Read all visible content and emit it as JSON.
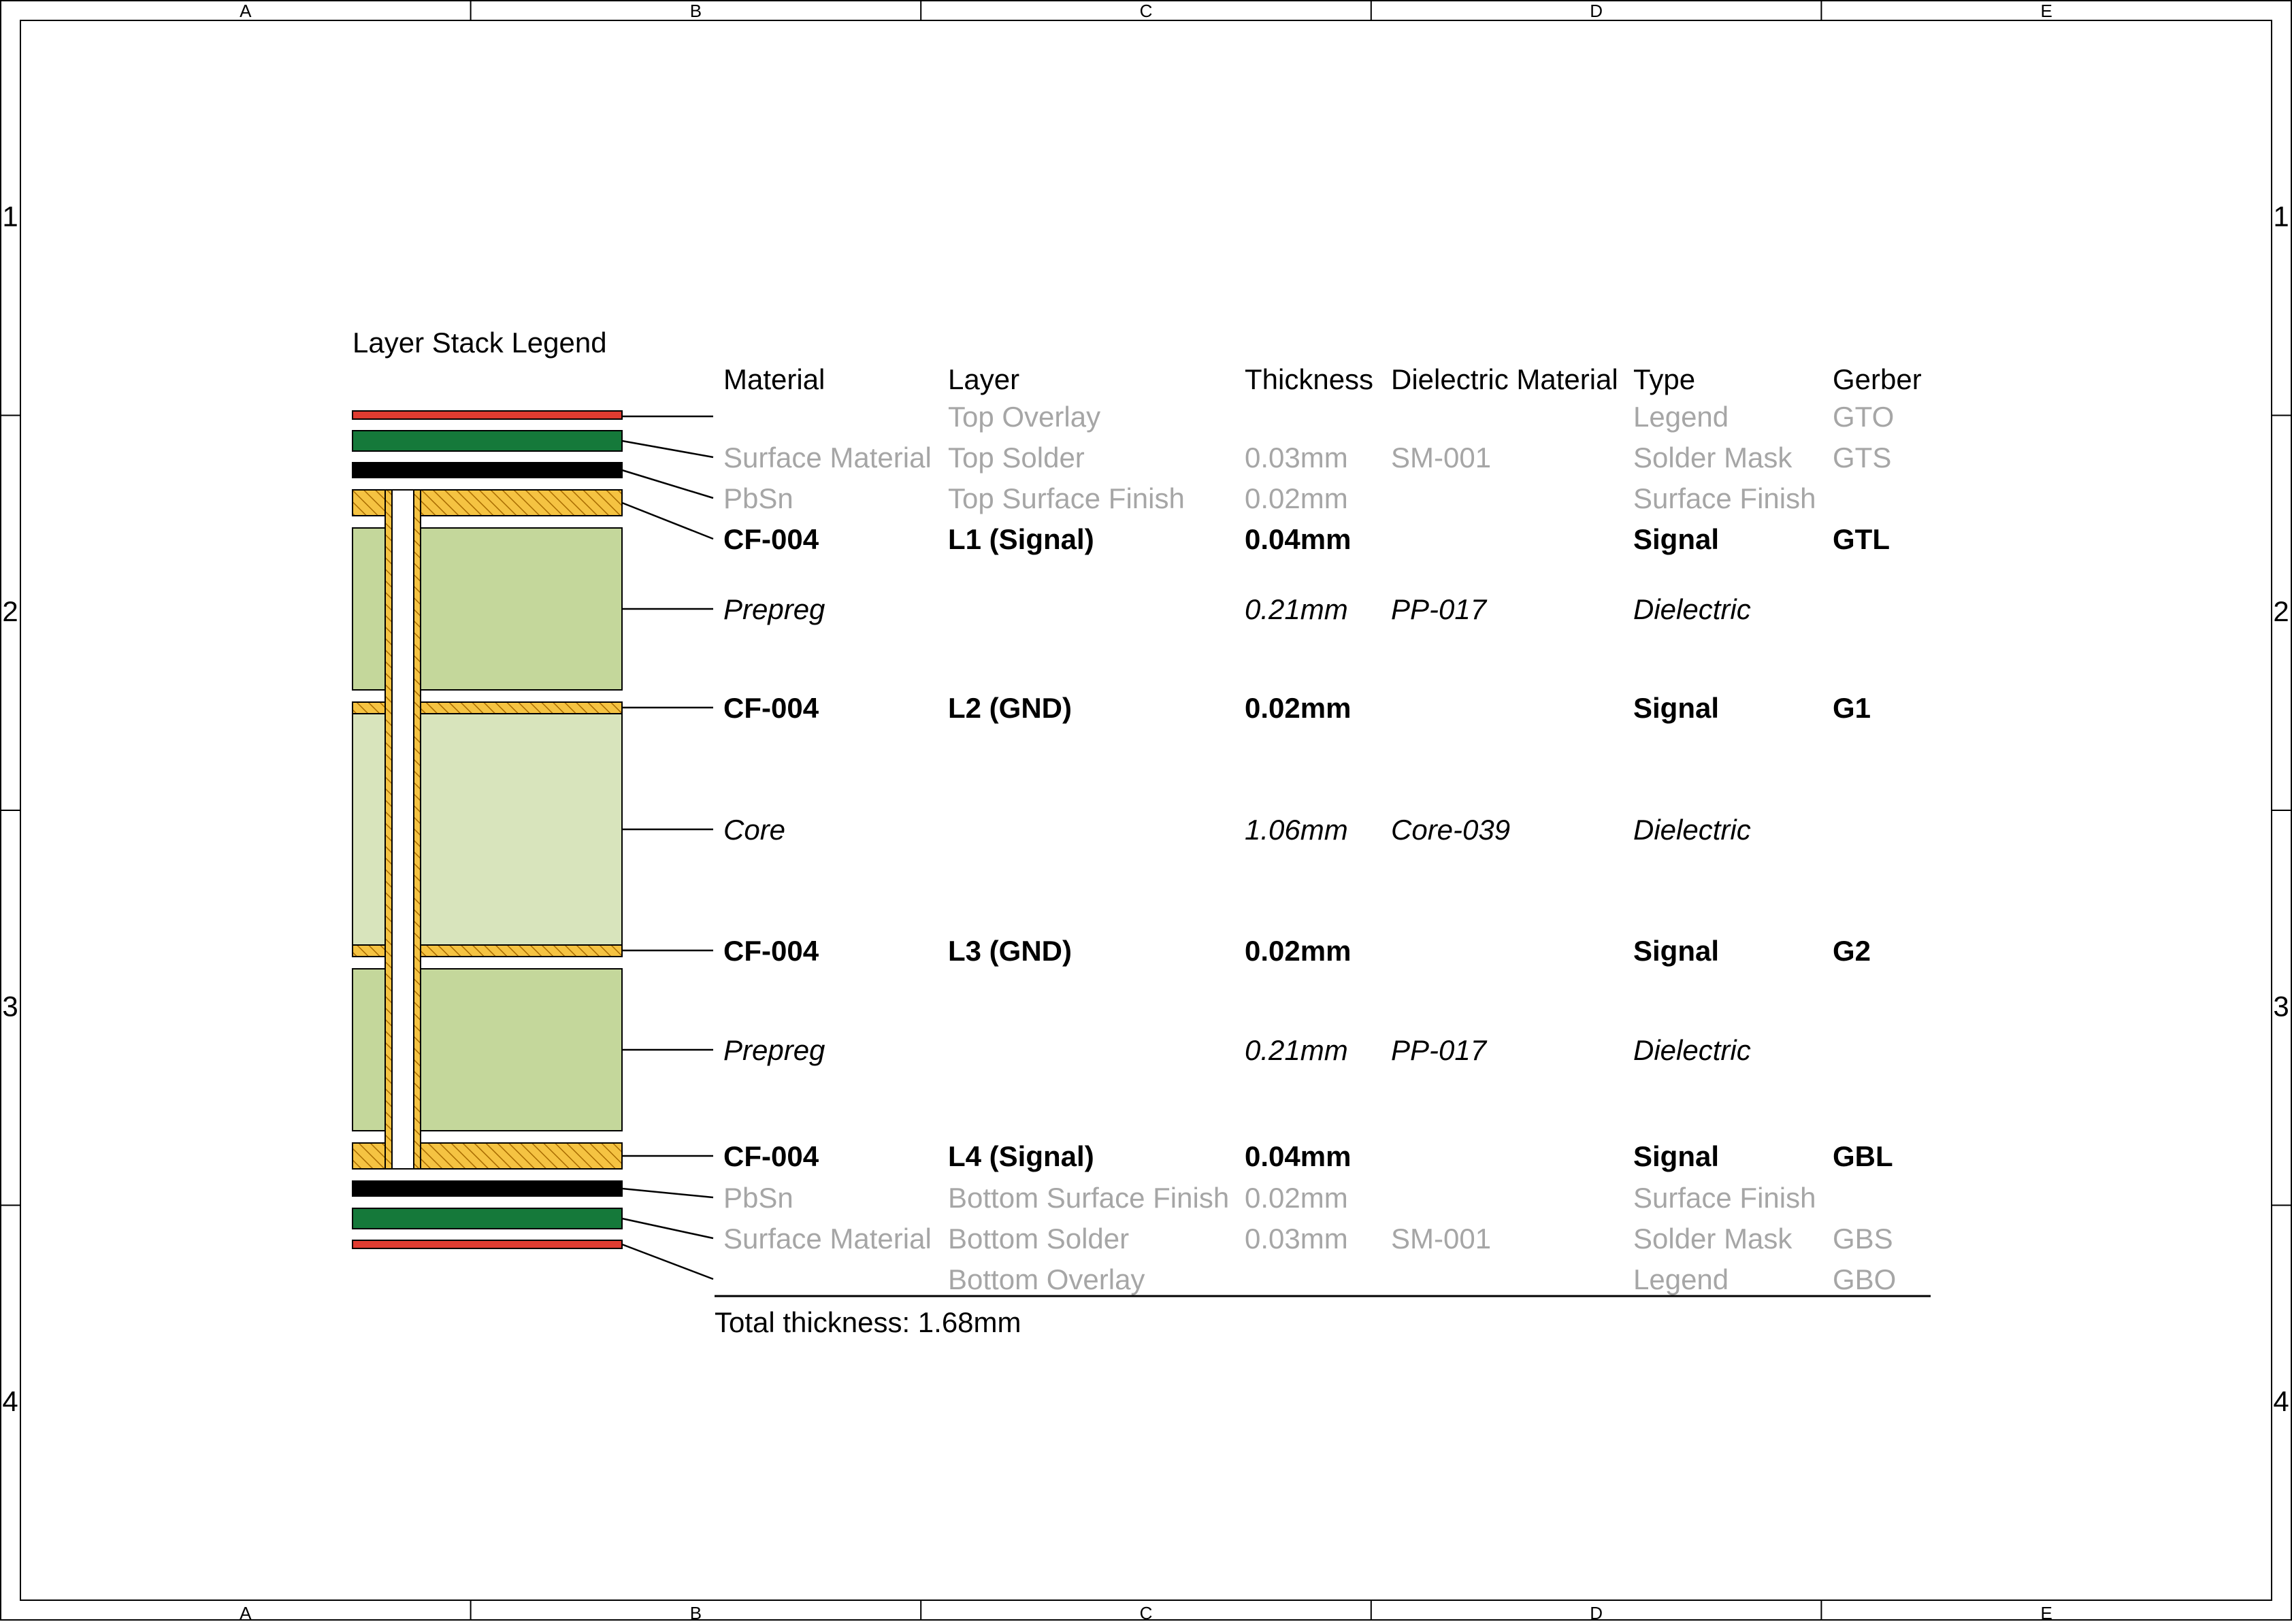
{
  "frame": {
    "columns": [
      "A",
      "B",
      "C",
      "D",
      "E"
    ],
    "rows": [
      "1",
      "2",
      "3",
      "4"
    ]
  },
  "legend_title": "Layer Stack Legend",
  "headers": {
    "material": "Material",
    "layer": "Layer",
    "thickness": "Thickness",
    "dielectric": "Dielectric Material",
    "type": "Type",
    "gerber": "Gerber"
  },
  "layers": [
    {
      "kind": "overlay",
      "material": "",
      "layer": "Top Overlay",
      "thickness": "",
      "dielectric": "",
      "type": "Legend",
      "gerber": "GTO"
    },
    {
      "kind": "mask",
      "material": "Surface Material",
      "layer": "Top Solder",
      "thickness": "0.03mm",
      "dielectric": "SM-001",
      "type": "Solder Mask",
      "gerber": "GTS"
    },
    {
      "kind": "finish",
      "material": "PbSn",
      "layer": "Top Surface Finish",
      "thickness": "0.02mm",
      "dielectric": "",
      "type": "Surface Finish",
      "gerber": ""
    },
    {
      "kind": "signal",
      "material": "CF-004",
      "layer": "L1 (Signal)",
      "thickness": "0.04mm",
      "dielectric": "",
      "type": "Signal",
      "gerber": "GTL"
    },
    {
      "kind": "prepreg",
      "material": "Prepreg",
      "layer": "",
      "thickness": "0.21mm",
      "dielectric": "PP-017",
      "type": "Dielectric",
      "gerber": ""
    },
    {
      "kind": "signal",
      "material": "CF-004",
      "layer": "L2 (GND)",
      "thickness": "0.02mm",
      "dielectric": "",
      "type": "Signal",
      "gerber": "G1"
    },
    {
      "kind": "core",
      "material": "Core",
      "layer": "",
      "thickness": "1.06mm",
      "dielectric": "Core-039",
      "type": "Dielectric",
      "gerber": ""
    },
    {
      "kind": "signal",
      "material": "CF-004",
      "layer": "L3 (GND)",
      "thickness": "0.02mm",
      "dielectric": "",
      "type": "Signal",
      "gerber": "G2"
    },
    {
      "kind": "prepreg",
      "material": "Prepreg",
      "layer": "",
      "thickness": "0.21mm",
      "dielectric": "PP-017",
      "type": "Dielectric",
      "gerber": ""
    },
    {
      "kind": "signal",
      "material": "CF-004",
      "layer": "L4 (Signal)",
      "thickness": "0.04mm",
      "dielectric": "",
      "type": "Signal",
      "gerber": "GBL"
    },
    {
      "kind": "finish",
      "material": "PbSn",
      "layer": "Bottom Surface Finish",
      "thickness": "0.02mm",
      "dielectric": "",
      "type": "Surface Finish",
      "gerber": ""
    },
    {
      "kind": "mask",
      "material": "Surface Material",
      "layer": "Bottom Solder",
      "thickness": "0.03mm",
      "dielectric": "SM-001",
      "type": "Solder Mask",
      "gerber": "GBS"
    },
    {
      "kind": "overlay",
      "material": "",
      "layer": "Bottom Overlay",
      "thickness": "",
      "dielectric": "",
      "type": "Legend",
      "gerber": "GBO"
    }
  ],
  "total_thickness": "Total thickness: 1.68mm",
  "colors": {
    "overlay": "#e03c31",
    "mask": "#15793a",
    "finish": "#000000",
    "copper": "#f5c342",
    "copper_hatch": "#a86b00",
    "prepreg": "#c4d79b",
    "core": "#d8e4bc",
    "grey_text": "#a6a6a6"
  }
}
